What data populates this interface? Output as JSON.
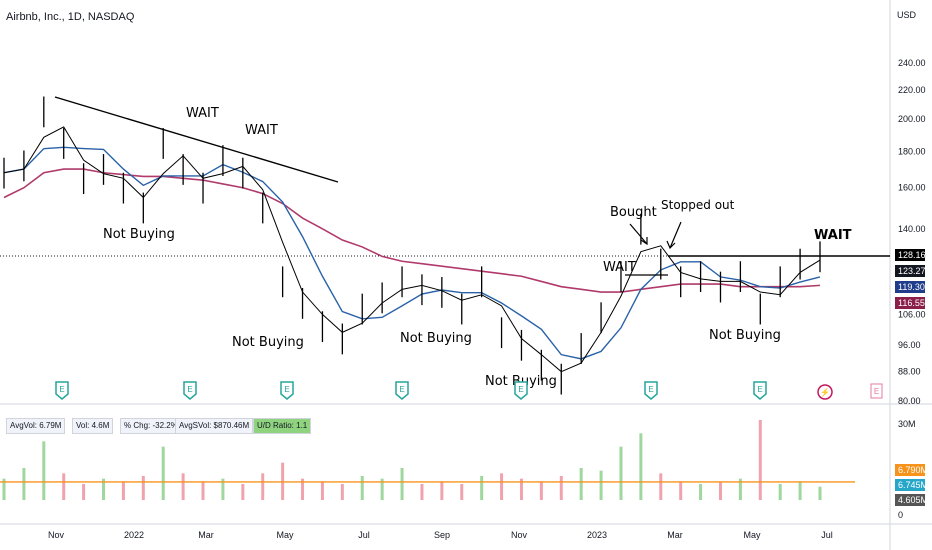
{
  "header": {
    "title": "Airbnb, Inc., 1D, NASDAQ",
    "currency": "USD"
  },
  "stats": [
    {
      "label": "AvgVol: 6.79M"
    },
    {
      "label": "Vol: 4.6M"
    },
    {
      "label": "% Chg: -32.2%"
    },
    {
      "label": "AvgSVol: $870.46M"
    },
    {
      "label": "U/D Ratio: 1.1",
      "highlight": true
    }
  ],
  "price_badges": [
    {
      "text": "128.16",
      "color": "#000000"
    },
    {
      "text": "123.27",
      "color": "#131722"
    },
    {
      "text": "119.30",
      "color": "#1f3d8a"
    },
    {
      "text": "116.55",
      "color": "#8a1f4a"
    }
  ],
  "volume_badges": [
    {
      "text": "6.790M",
      "color": "#f7931a"
    },
    {
      "text": "6.745M",
      "color": "#26a7c9"
    },
    {
      "text": "4.605M",
      "color": "#555555"
    }
  ],
  "annotations": {
    "wait1": "WAIT",
    "wait2": "WAIT",
    "wait3": "WAIT",
    "wait4": "WAIT",
    "not_buying1": "Not Buying",
    "not_buying2": "Not Buying",
    "not_buying3": "Not Buying",
    "not_buying4": "Not Buying",
    "not_buying5": "Not Buying",
    "bought": "Bought",
    "stopped_out": "Stopped out"
  },
  "earnings_icon_label": "E",
  "dividend_icon_label": "⚡",
  "colors": {
    "price": "#000000",
    "ema_fast": "#000000",
    "sma50": "#2962a8",
    "sma200": "#b03a6b",
    "volume_ma": "#f7931a"
  },
  "chart_data": {
    "type": "line",
    "title": "Airbnb, Inc., 1D, NASDAQ",
    "y_axis": {
      "ticks": [
        80,
        88,
        96,
        106,
        116,
        128,
        140,
        160,
        180,
        200,
        220,
        240
      ],
      "scale": "log"
    },
    "x_axis": {
      "ticks": [
        "Nov",
        "2022",
        "Mar",
        "May",
        "Jul",
        "Sep",
        "Nov",
        "2023",
        "Mar",
        "May",
        "Jul"
      ]
    },
    "volume_axis": {
      "ticks": [
        "30M",
        "0"
      ]
    },
    "series": [
      {
        "name": "Close",
        "x": [
          "2021-10-15",
          "2021-11-01",
          "2021-11-15",
          "2021-12-01",
          "2021-12-15",
          "2022-01-01",
          "2022-01-15",
          "2022-02-01",
          "2022-02-15",
          "2022-03-01",
          "2022-03-15",
          "2022-04-01",
          "2022-04-15",
          "2022-05-01",
          "2022-05-15",
          "2022-06-01",
          "2022-06-15",
          "2022-07-01",
          "2022-07-15",
          "2022-08-01",
          "2022-08-15",
          "2022-09-01",
          "2022-09-15",
          "2022-10-01",
          "2022-10-15",
          "2022-11-01",
          "2022-11-15",
          "2022-12-01",
          "2022-12-15",
          "2023-01-01",
          "2023-01-15",
          "2023-02-01",
          "2023-02-15",
          "2023-03-01",
          "2023-03-15",
          "2023-04-01",
          "2023-04-15",
          "2023-05-01",
          "2023-05-15",
          "2023-06-01",
          "2023-06-15",
          "2023-06-28"
        ],
        "values": [
          168,
          172,
          205,
          185,
          165,
          170,
          160,
          150,
          185,
          170,
          160,
          175,
          168,
          150,
          118,
          110,
          102,
          98,
          108,
          112,
          118,
          115,
          114,
          108,
          118,
          100,
          96,
          90,
          86,
          95,
          105,
          120,
          140,
          125,
          118,
          120,
          116,
          120,
          108,
          118,
          125,
          128
        ]
      },
      {
        "name": "SMA200",
        "values": [
          155,
          160,
          168,
          170,
          170,
          168,
          167,
          166,
          166,
          165,
          164,
          162,
          160,
          157,
          152,
          145,
          140,
          135,
          132,
          128,
          126,
          125,
          124,
          123,
          122,
          121,
          120,
          118,
          116,
          115,
          114,
          114,
          115,
          116,
          117,
          117,
          117,
          116,
          116,
          116,
          116,
          116.5
        ]
      }
    ],
    "volume": {
      "values_m": [
        8,
        12,
        22,
        10,
        6,
        8,
        7,
        9,
        20,
        10,
        7,
        8,
        6,
        10,
        14,
        8,
        7,
        6,
        9,
        8,
        12,
        6,
        7,
        6,
        9,
        10,
        8,
        7,
        9,
        12,
        11,
        20,
        25,
        10,
        7,
        6,
        7,
        8,
        30,
        6,
        7,
        5
      ],
      "avg_m": 6.79,
      "last_m": 4.605
    }
  }
}
